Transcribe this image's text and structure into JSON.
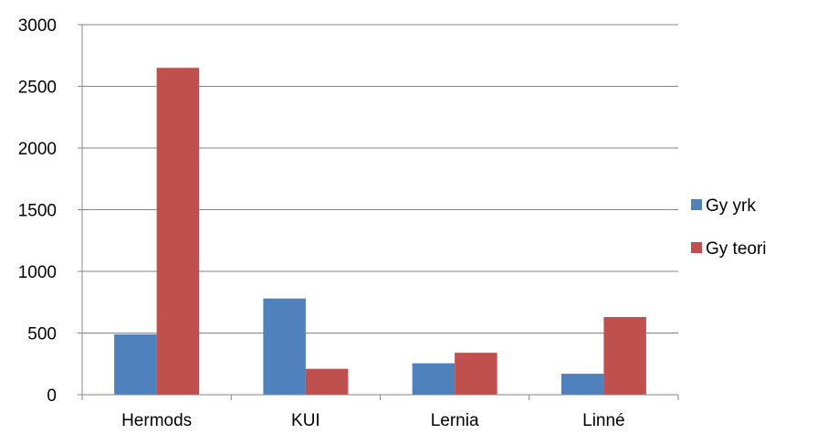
{
  "chart_data": {
    "type": "bar",
    "categories": [
      "Hermods",
      "KUI",
      "Lernia",
      "Linné"
    ],
    "series": [
      {
        "name": "Gy yrk",
        "color": "#4f81bd",
        "values": [
          490,
          780,
          255,
          170
        ]
      },
      {
        "name": "Gy teori",
        "color": "#c0504d",
        "values": [
          2650,
          210,
          340,
          630
        ]
      }
    ],
    "yticks": [
      "0",
      "500",
      "1000",
      "1500",
      "2000",
      "2500",
      "3000"
    ],
    "ylim": [
      0,
      3000
    ],
    "grid": true,
    "legend": "right",
    "title": "",
    "xlabel": "",
    "ylabel": ""
  }
}
